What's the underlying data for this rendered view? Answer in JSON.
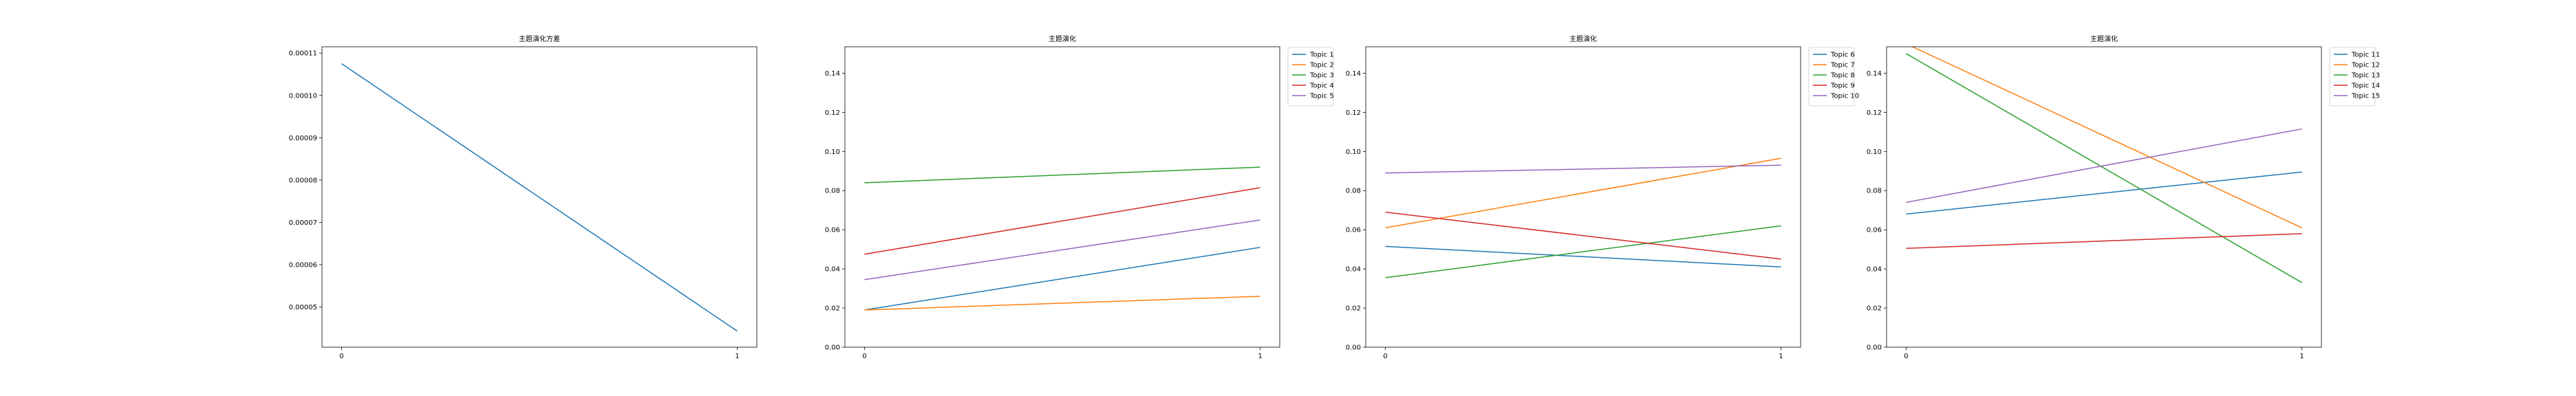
{
  "chart_data": [
    {
      "type": "line",
      "title": "主题演化方差",
      "x": [
        0,
        1
      ],
      "x_ticks": [
        "0",
        "1"
      ],
      "y_ticks": [
        "0.00005",
        "0.00006",
        "0.00007",
        "0.00008",
        "0.00009",
        "0.00010",
        "0.00011"
      ],
      "ylim": [
        4.05e-05,
        0.0001115
      ],
      "grid": false,
      "legend": "none",
      "series": [
        {
          "values": [
            0.0001075,
            4.43e-05
          ],
          "color": "#1f77b4"
        }
      ]
    },
    {
      "type": "line",
      "title": "主题演化",
      "x": [
        0,
        1
      ],
      "x_ticks": [
        "0",
        "1"
      ],
      "y_ticks": [
        "0.00",
        "0.02",
        "0.04",
        "0.06",
        "0.08",
        "0.10",
        "0.12",
        "0.14"
      ],
      "ylim": [
        0,
        0.1535
      ],
      "grid": false,
      "legend": "outside-top-right",
      "series": [
        {
          "name": "Topic 1",
          "values": [
            0.019,
            0.051
          ],
          "color": "#1f77b4"
        },
        {
          "name": "Topic 2",
          "values": [
            0.019,
            0.026
          ],
          "color": "#ff7f0e"
        },
        {
          "name": "Topic 3",
          "values": [
            0.084,
            0.092
          ],
          "color": "#2ca02c"
        },
        {
          "name": "Topic 4",
          "values": [
            0.0475,
            0.0815
          ],
          "color": "#d62728"
        },
        {
          "name": "Topic 5",
          "values": [
            0.0345,
            0.065
          ],
          "color": "#9467bd"
        }
      ]
    },
    {
      "type": "line",
      "title": "主题演化",
      "x": [
        0,
        1
      ],
      "x_ticks": [
        "0",
        "1"
      ],
      "y_ticks": [
        "0.00",
        "0.02",
        "0.04",
        "0.06",
        "0.08",
        "0.10",
        "0.12",
        "0.14"
      ],
      "ylim": [
        0,
        0.1535
      ],
      "grid": false,
      "legend": "outside-top-right",
      "series": [
        {
          "name": "Topic 6",
          "values": [
            0.0515,
            0.041
          ],
          "color": "#1f77b4"
        },
        {
          "name": "Topic 7",
          "values": [
            0.061,
            0.0965
          ],
          "color": "#ff7f0e"
        },
        {
          "name": "Topic 8",
          "values": [
            0.0355,
            0.062
          ],
          "color": "#2ca02c"
        },
        {
          "name": "Topic 9",
          "values": [
            0.069,
            0.045
          ],
          "color": "#d62728"
        },
        {
          "name": "Topic 10",
          "values": [
            0.089,
            0.093
          ],
          "color": "#9467bd"
        }
      ]
    },
    {
      "type": "line",
      "title": "主题演化",
      "x": [
        0,
        1
      ],
      "x_ticks": [
        "0",
        "1"
      ],
      "y_ticks": [
        "0.00",
        "0.02",
        "0.04",
        "0.06",
        "0.08",
        "0.10",
        "0.12",
        "0.14"
      ],
      "ylim": [
        0,
        0.1535
      ],
      "grid": false,
      "legend": "outside-top-right",
      "series": [
        {
          "name": "Topic 11",
          "values": [
            0.068,
            0.0895
          ],
          "color": "#1f77b4"
        },
        {
          "name": "Topic 12",
          "values": [
            0.155,
            0.061
          ],
          "color": "#ff7f0e"
        },
        {
          "name": "Topic 13",
          "values": [
            0.15,
            0.033
          ],
          "color": "#2ca02c"
        },
        {
          "name": "Topic 14",
          "values": [
            0.0505,
            0.058
          ],
          "color": "#d62728"
        },
        {
          "name": "Topic 15",
          "values": [
            0.074,
            0.1115
          ],
          "color": "#9467bd"
        }
      ]
    }
  ]
}
